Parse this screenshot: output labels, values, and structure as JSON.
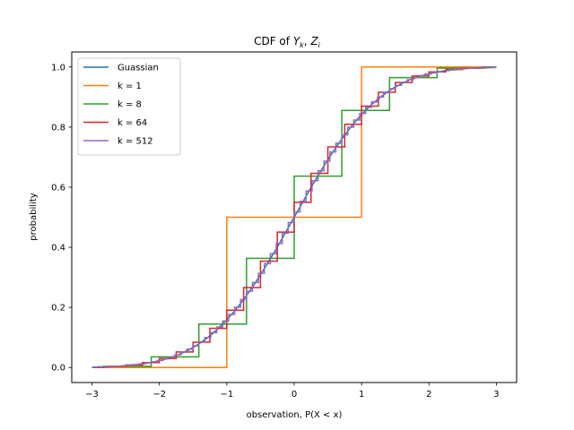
{
  "chart_data": {
    "type": "line",
    "title_main": "CDF of ",
    "title_y": "Y",
    "title_y_sub": "k",
    "title_sep": ", ",
    "title_z": "Z",
    "title_z_sub": "i",
    "xlabel": "observation, P(X < x)",
    "ylabel": "probability",
    "xlim": [
      -3.3,
      3.3
    ],
    "ylim": [
      -0.05,
      1.05
    ],
    "xticks": [
      -3,
      -2,
      -1,
      0,
      1,
      2,
      3
    ],
    "xtick_labels": [
      "−3",
      "−2",
      "−1",
      "0",
      "1",
      "2",
      "3"
    ],
    "yticks": [
      0.0,
      0.2,
      0.4,
      0.6,
      0.8,
      1.0
    ],
    "ytick_labels": [
      "0.0",
      "0.2",
      "0.4",
      "0.6",
      "0.8",
      "1.0"
    ],
    "legend_position": "upper-left",
    "series": [
      {
        "name": "Guassian",
        "color": "#1f77b4",
        "kind": "normal-cdf",
        "x_range": [
          -3,
          3
        ]
      },
      {
        "name": "k = 1",
        "color": "#ff7f0e",
        "kind": "binomial-cdf",
        "k": 1,
        "x_range": [
          -3,
          3
        ]
      },
      {
        "name": "k = 8",
        "color": "#2ca02c",
        "kind": "binomial-cdf",
        "k": 8,
        "x_range": [
          -3,
          3
        ]
      },
      {
        "name": "k = 64",
        "color": "#d62728",
        "kind": "binomial-cdf",
        "k": 64,
        "x_range": [
          -3,
          3
        ]
      },
      {
        "name": "k = 512",
        "color": "#9467bd",
        "kind": "binomial-cdf",
        "k": 512,
        "x_range": [
          -3,
          3
        ]
      }
    ]
  }
}
